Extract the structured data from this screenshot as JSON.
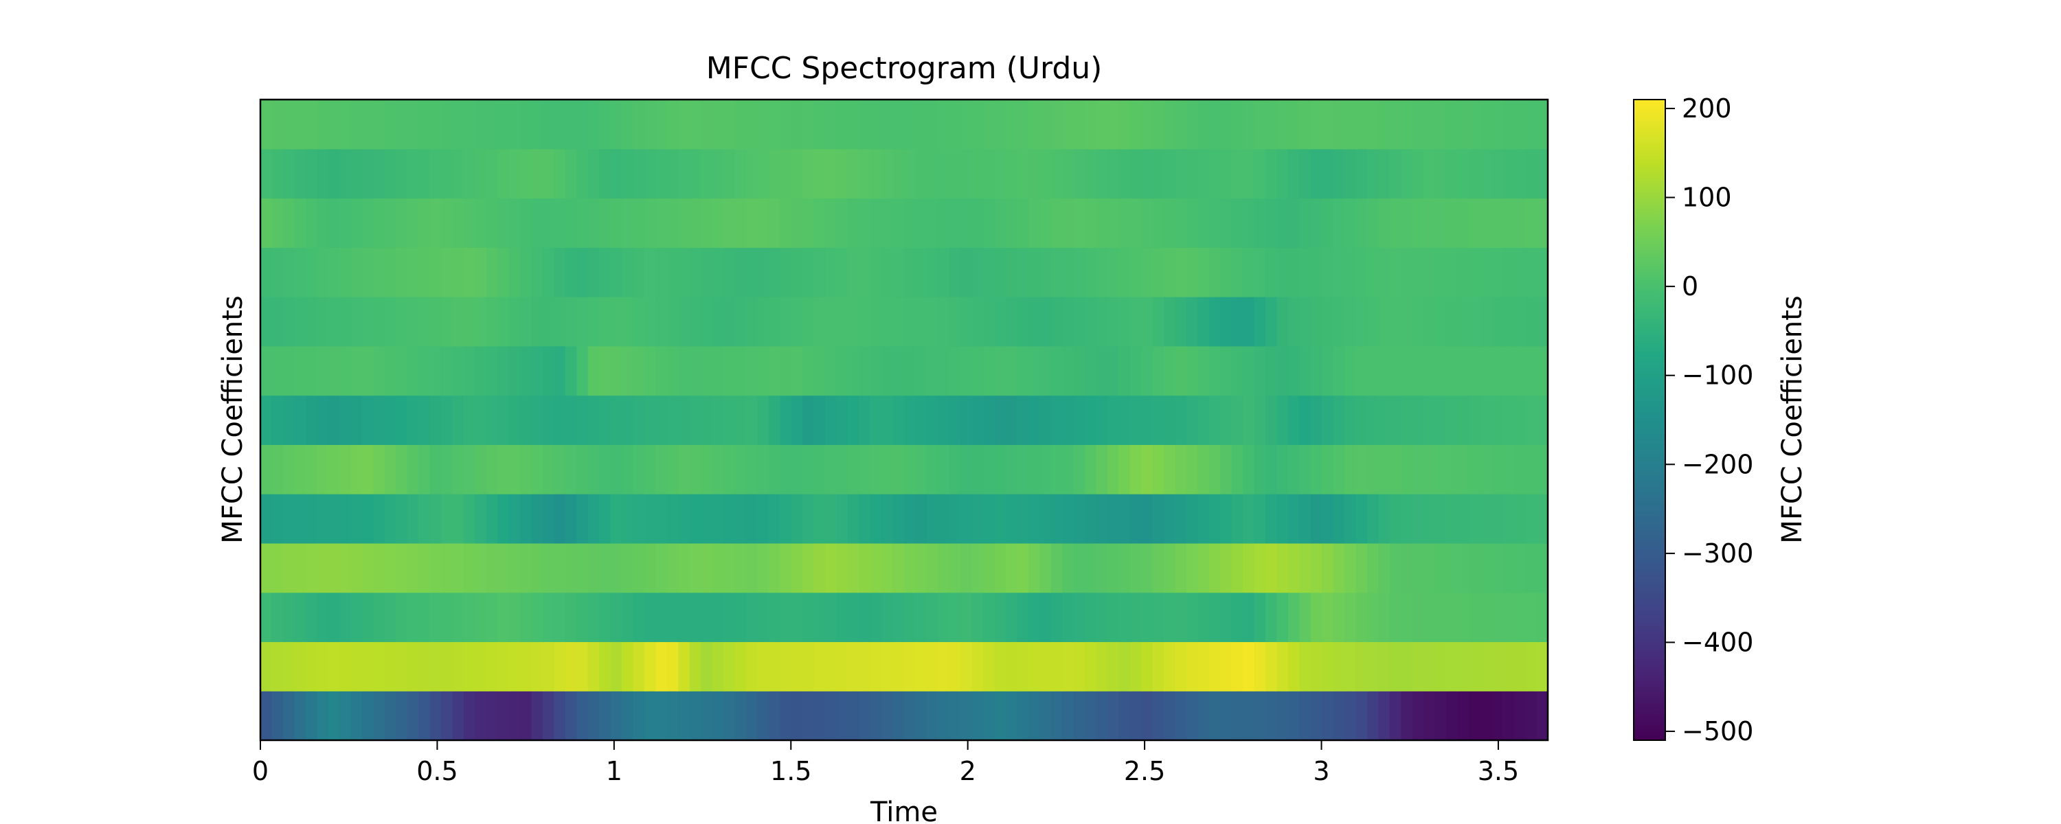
{
  "chart_data": {
    "type": "heatmap",
    "title": "MFCC Spectrogram (Urdu)",
    "xlabel": "Time",
    "ylabel": "MFCC Coefficients",
    "colorbar_label": "MFCC Coefficients",
    "colormap": "viridis",
    "xlim": [
      0,
      3.64
    ],
    "n_coefficients": 13,
    "n_frames": 114,
    "x_ticks": [
      {
        "value": 0,
        "label": "0"
      },
      {
        "value": 0.5,
        "label": "0.5"
      },
      {
        "value": 1,
        "label": "1"
      },
      {
        "value": 1.5,
        "label": "1.5"
      },
      {
        "value": 2,
        "label": "2"
      },
      {
        "value": 2.5,
        "label": "2.5"
      },
      {
        "value": 3,
        "label": "3"
      },
      {
        "value": 3.5,
        "label": "3.5"
      }
    ],
    "color_range": [
      -510,
      210
    ],
    "colorbar_ticks": [
      {
        "value": 200,
        "label": "200"
      },
      {
        "value": 100,
        "label": "100"
      },
      {
        "value": 0,
        "label": "0"
      },
      {
        "value": -100,
        "label": "−100"
      },
      {
        "value": -200,
        "label": "−200"
      },
      {
        "value": -300,
        "label": "−300"
      },
      {
        "value": -400,
        "label": "−400"
      },
      {
        "value": -500,
        "label": "−500"
      }
    ],
    "rows": [
      {
        "coefficient": 0,
        "profile": [
          [
            0.0,
            -320
          ],
          [
            0.2,
            -180
          ],
          [
            0.45,
            -300
          ],
          [
            0.6,
            -420
          ],
          [
            0.75,
            -440
          ],
          [
            0.9,
            -300
          ],
          [
            1.1,
            -200
          ],
          [
            1.3,
            -230
          ],
          [
            1.5,
            -320
          ],
          [
            1.7,
            -300
          ],
          [
            1.9,
            -240
          ],
          [
            2.1,
            -200
          ],
          [
            2.3,
            -270
          ],
          [
            2.5,
            -330
          ],
          [
            2.7,
            -260
          ],
          [
            2.9,
            -280
          ],
          [
            3.1,
            -340
          ],
          [
            3.25,
            -460
          ],
          [
            3.45,
            -500
          ],
          [
            3.64,
            -470
          ]
        ]
      },
      {
        "coefficient": 1,
        "profile": [
          [
            0.0,
            120
          ],
          [
            0.2,
            140
          ],
          [
            0.5,
            130
          ],
          [
            0.8,
            150
          ],
          [
            0.9,
            170
          ],
          [
            1.0,
            120
          ],
          [
            1.15,
            200
          ],
          [
            1.25,
            110
          ],
          [
            1.4,
            150
          ],
          [
            1.6,
            160
          ],
          [
            1.8,
            170
          ],
          [
            1.95,
            180
          ],
          [
            2.1,
            140
          ],
          [
            2.3,
            150
          ],
          [
            2.45,
            120
          ],
          [
            2.6,
            170
          ],
          [
            2.8,
            200
          ],
          [
            2.95,
            130
          ],
          [
            3.2,
            110
          ],
          [
            3.64,
            120
          ]
        ]
      },
      {
        "coefficient": 2,
        "profile": [
          [
            0.0,
            -20
          ],
          [
            0.2,
            -60
          ],
          [
            0.4,
            -20
          ],
          [
            0.7,
            10
          ],
          [
            0.95,
            -30
          ],
          [
            1.1,
            -60
          ],
          [
            1.3,
            -60
          ],
          [
            1.5,
            -40
          ],
          [
            1.7,
            -60
          ],
          [
            2.0,
            -20
          ],
          [
            2.2,
            -70
          ],
          [
            2.4,
            -40
          ],
          [
            2.6,
            -30
          ],
          [
            2.8,
            -60
          ],
          [
            3.0,
            60
          ],
          [
            3.2,
            20
          ],
          [
            3.64,
            10
          ]
        ]
      },
      {
        "coefficient": 3,
        "profile": [
          [
            0.0,
            80
          ],
          [
            0.2,
            90
          ],
          [
            0.45,
            70
          ],
          [
            0.8,
            40
          ],
          [
            1.0,
            30
          ],
          [
            1.25,
            60
          ],
          [
            1.4,
            50
          ],
          [
            1.6,
            100
          ],
          [
            1.75,
            80
          ],
          [
            2.0,
            40
          ],
          [
            2.15,
            70
          ],
          [
            2.3,
            10
          ],
          [
            2.5,
            30
          ],
          [
            2.85,
            120
          ],
          [
            3.0,
            90
          ],
          [
            3.2,
            20
          ],
          [
            3.64,
            0
          ]
        ]
      },
      {
        "coefficient": 4,
        "profile": [
          [
            0.0,
            -100
          ],
          [
            0.3,
            -80
          ],
          [
            0.55,
            -20
          ],
          [
            0.85,
            -150
          ],
          [
            1.0,
            -60
          ],
          [
            1.4,
            -90
          ],
          [
            1.6,
            -40
          ],
          [
            1.85,
            -110
          ],
          [
            2.1,
            -80
          ],
          [
            2.5,
            -140
          ],
          [
            2.8,
            -50
          ],
          [
            3.0,
            -120
          ],
          [
            3.2,
            -40
          ],
          [
            3.64,
            -20
          ]
        ]
      },
      {
        "coefficient": 5,
        "profile": [
          [
            0.0,
            20
          ],
          [
            0.3,
            60
          ],
          [
            0.5,
            0
          ],
          [
            0.7,
            30
          ],
          [
            1.0,
            -10
          ],
          [
            1.2,
            20
          ],
          [
            1.5,
            -10
          ],
          [
            1.8,
            10
          ],
          [
            2.0,
            -20
          ],
          [
            2.3,
            0
          ],
          [
            2.5,
            80
          ],
          [
            2.7,
            30
          ],
          [
            2.85,
            -30
          ],
          [
            3.1,
            20
          ],
          [
            3.64,
            0
          ]
        ]
      },
      {
        "coefficient": 6,
        "profile": [
          [
            0.0,
            -70
          ],
          [
            0.2,
            -110
          ],
          [
            0.45,
            -70
          ],
          [
            0.6,
            -40
          ],
          [
            0.85,
            -70
          ],
          [
            1.1,
            -50
          ],
          [
            1.4,
            -30
          ],
          [
            1.55,
            -110
          ],
          [
            1.75,
            -60
          ],
          [
            2.1,
            -120
          ],
          [
            2.4,
            -70
          ],
          [
            2.6,
            -60
          ],
          [
            2.8,
            -20
          ],
          [
            2.95,
            -80
          ],
          [
            3.1,
            -40
          ],
          [
            3.64,
            -10
          ]
        ]
      },
      {
        "coefficient": 7,
        "profile": [
          [
            0.0,
            0
          ],
          [
            0.3,
            10
          ],
          [
            0.6,
            -20
          ],
          [
            0.85,
            -60
          ],
          [
            0.95,
            30
          ],
          [
            1.2,
            0
          ],
          [
            1.5,
            10
          ],
          [
            1.8,
            -20
          ],
          [
            2.1,
            0
          ],
          [
            2.4,
            -30
          ],
          [
            2.6,
            10
          ],
          [
            2.9,
            -40
          ],
          [
            3.1,
            0
          ],
          [
            3.64,
            0
          ]
        ]
      },
      {
        "coefficient": 8,
        "profile": [
          [
            0.0,
            -30
          ],
          [
            0.3,
            -10
          ],
          [
            0.6,
            10
          ],
          [
            0.8,
            -20
          ],
          [
            1.0,
            0
          ],
          [
            1.3,
            -30
          ],
          [
            1.6,
            0
          ],
          [
            1.9,
            -10
          ],
          [
            2.2,
            -40
          ],
          [
            2.5,
            -10
          ],
          [
            2.78,
            -100
          ],
          [
            2.9,
            -30
          ],
          [
            3.2,
            0
          ],
          [
            3.64,
            -20
          ]
        ]
      },
      {
        "coefficient": 9,
        "profile": [
          [
            0.0,
            -20
          ],
          [
            0.3,
            10
          ],
          [
            0.6,
            30
          ],
          [
            0.9,
            -40
          ],
          [
            1.1,
            -10
          ],
          [
            1.4,
            -30
          ],
          [
            1.7,
            0
          ],
          [
            2.0,
            -30
          ],
          [
            2.3,
            -10
          ],
          [
            2.6,
            20
          ],
          [
            2.9,
            -20
          ],
          [
            3.2,
            0
          ],
          [
            3.64,
            -10
          ]
        ]
      },
      {
        "coefficient": 10,
        "profile": [
          [
            0.0,
            30
          ],
          [
            0.2,
            -10
          ],
          [
            0.5,
            20
          ],
          [
            0.8,
            -10
          ],
          [
            1.1,
            10
          ],
          [
            1.4,
            30
          ],
          [
            1.7,
            0
          ],
          [
            2.0,
            -10
          ],
          [
            2.3,
            20
          ],
          [
            2.6,
            0
          ],
          [
            2.9,
            -30
          ],
          [
            3.2,
            10
          ],
          [
            3.64,
            20
          ]
        ]
      },
      {
        "coefficient": 11,
        "profile": [
          [
            0.0,
            -10
          ],
          [
            0.2,
            -40
          ],
          [
            0.5,
            -10
          ],
          [
            0.8,
            20
          ],
          [
            1.0,
            -30
          ],
          [
            1.3,
            0
          ],
          [
            1.6,
            30
          ],
          [
            1.9,
            0
          ],
          [
            2.2,
            10
          ],
          [
            2.5,
            -20
          ],
          [
            2.8,
            0
          ],
          [
            3.0,
            -50
          ],
          [
            3.3,
            0
          ],
          [
            3.64,
            -20
          ]
        ]
      },
      {
        "coefficient": 12,
        "profile": [
          [
            0.0,
            20
          ],
          [
            0.3,
            10
          ],
          [
            0.6,
            0
          ],
          [
            0.9,
            -10
          ],
          [
            1.2,
            20
          ],
          [
            1.5,
            10
          ],
          [
            1.8,
            0
          ],
          [
            2.1,
            10
          ],
          [
            2.4,
            30
          ],
          [
            2.7,
            0
          ],
          [
            3.0,
            20
          ],
          [
            3.3,
            10
          ],
          [
            3.64,
            0
          ]
        ]
      }
    ]
  }
}
